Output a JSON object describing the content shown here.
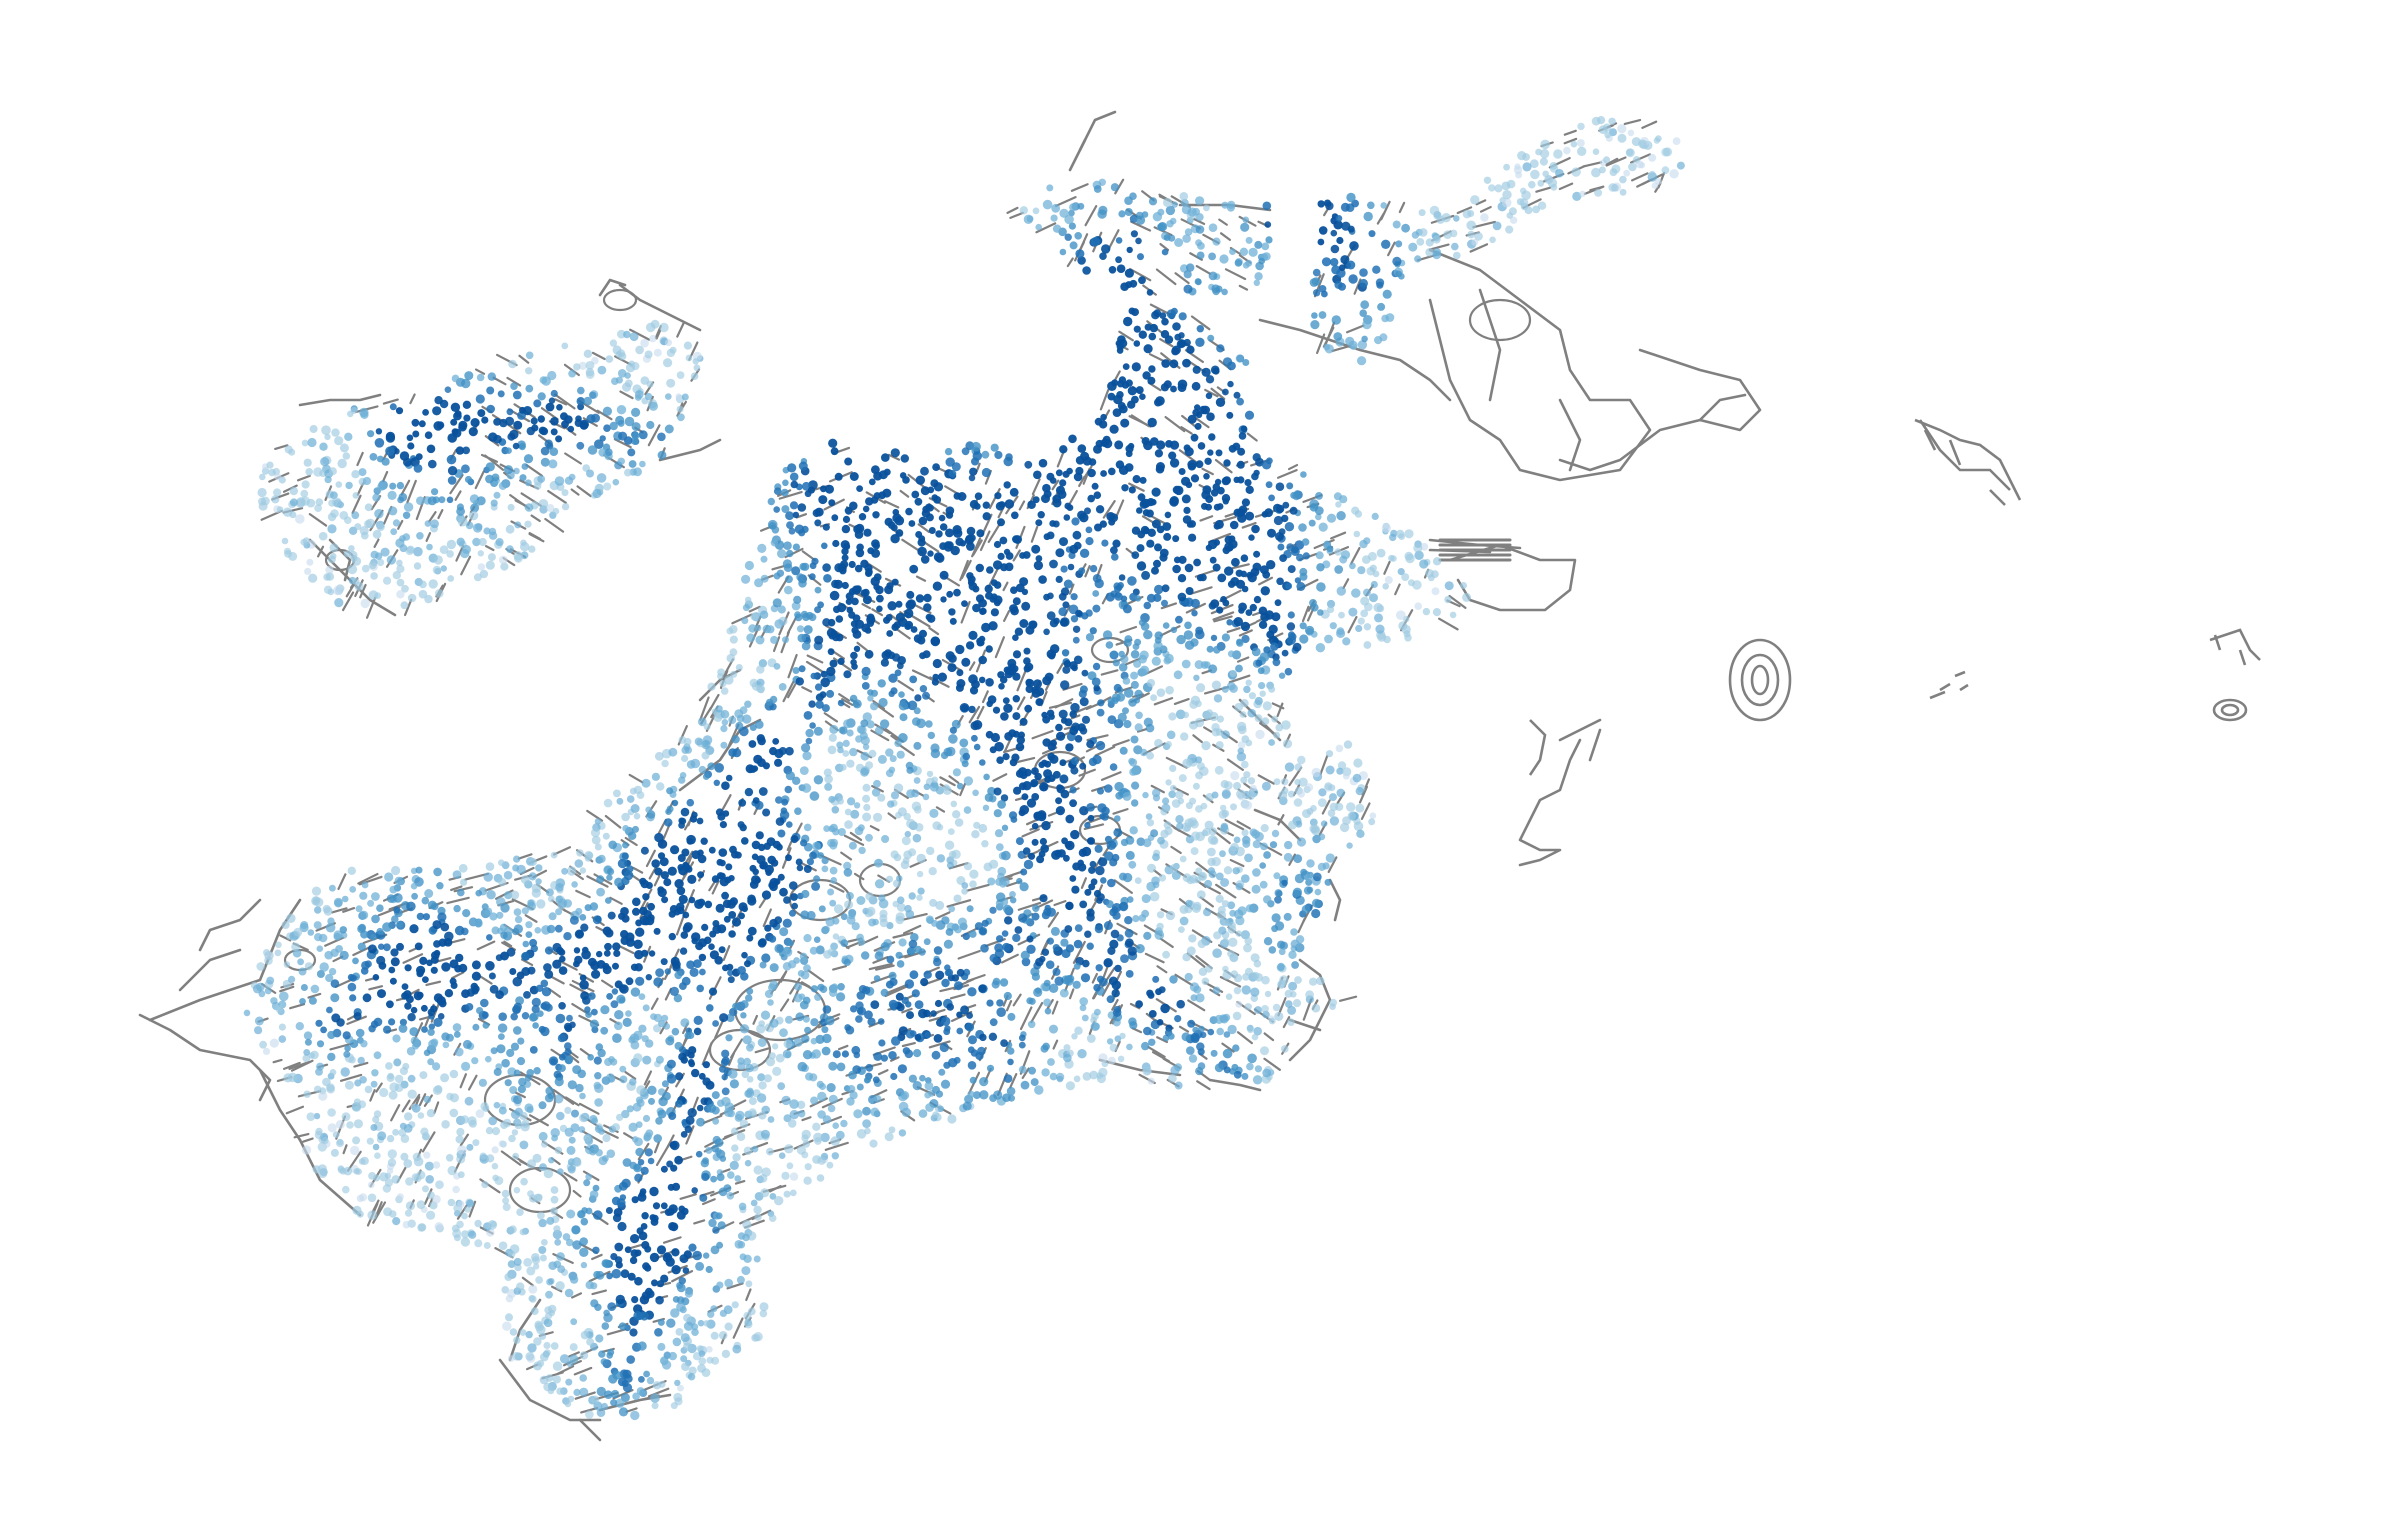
{
  "map": {
    "kind": "street-network density map",
    "background": "#ffffff",
    "street_color": "#808080",
    "point_palette": [
      "#c6dbef",
      "#9ecae1",
      "#6baed6",
      "#4292c6",
      "#2171b5",
      "#08519c"
    ],
    "labels": []
  }
}
